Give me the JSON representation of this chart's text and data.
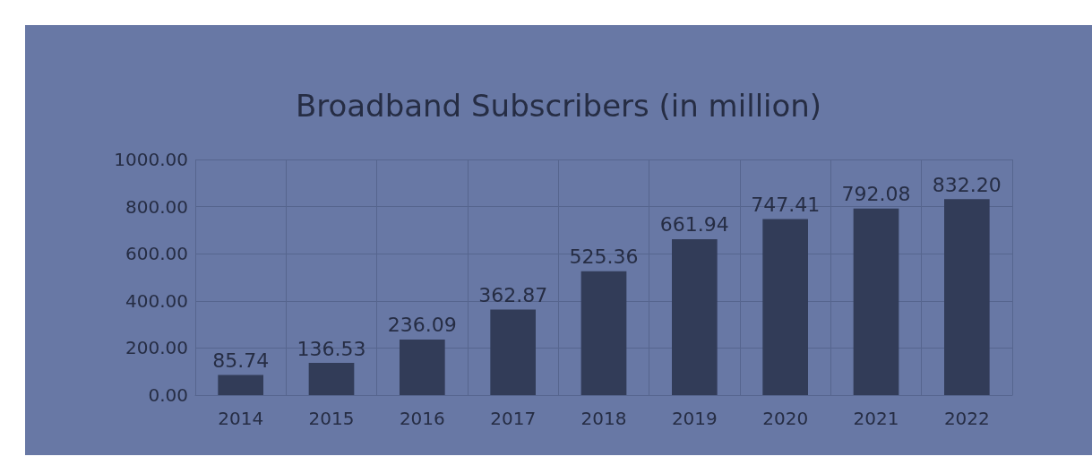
{
  "chart_data": {
    "type": "bar",
    "title": "Broadband Subscribers (in million)",
    "categories": [
      "2014",
      "2015",
      "2016",
      "2017",
      "2018",
      "2019",
      "2020",
      "2021",
      "2022"
    ],
    "values": [
      85.74,
      136.53,
      236.09,
      362.87,
      525.36,
      661.94,
      747.41,
      792.08,
      832.2
    ],
    "value_labels": [
      "85.74",
      "136.53",
      "236.09",
      "362.87",
      "525.36",
      "661.94",
      "747.41",
      "792.08",
      "832.20"
    ],
    "color": "#323c58",
    "ylim": [
      0,
      1000
    ],
    "yticks": [
      {
        "value": 0,
        "label": "0.00"
      },
      {
        "value": 200,
        "label": "200.00"
      },
      {
        "value": 400,
        "label": "400.00"
      },
      {
        "value": 600,
        "label": "600.00"
      },
      {
        "value": 800,
        "label": "800.00"
      },
      {
        "value": 1000,
        "label": "1000.00"
      }
    ],
    "grid": true
  }
}
